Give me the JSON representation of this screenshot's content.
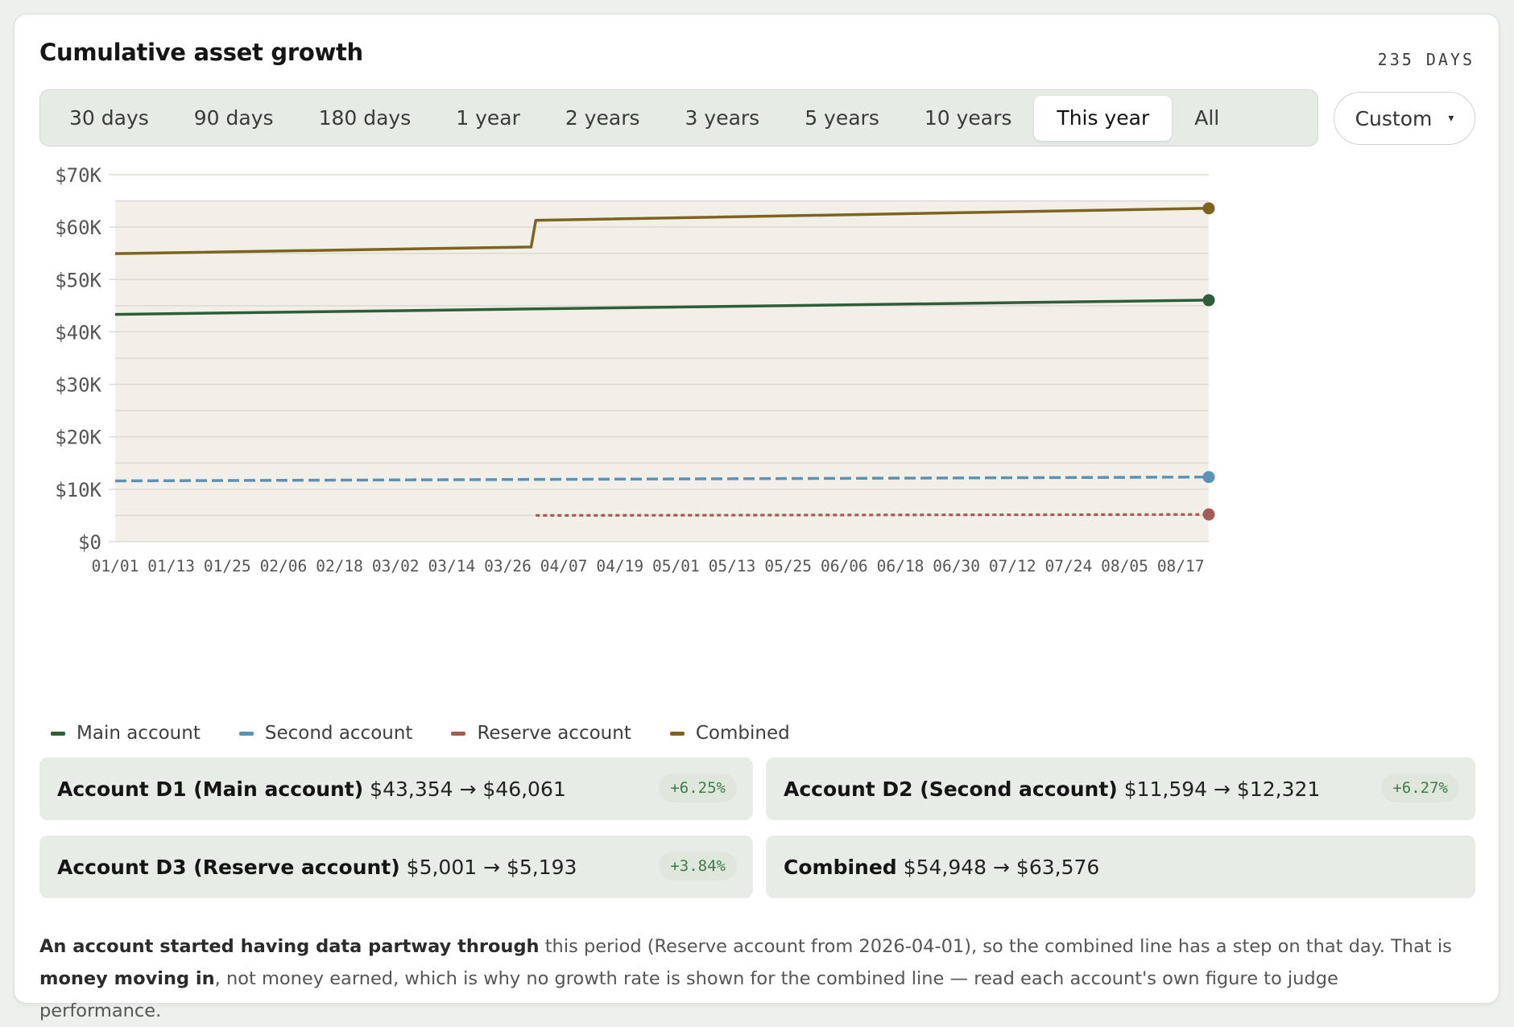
{
  "header": {
    "title": "Cumulative asset growth",
    "period_days": "235 DAYS"
  },
  "range_tabs": [
    {
      "label": "30 days",
      "active": false
    },
    {
      "label": "90 days",
      "active": false
    },
    {
      "label": "180 days",
      "active": false
    },
    {
      "label": "1 year",
      "active": false
    },
    {
      "label": "2 years",
      "active": false
    },
    {
      "label": "3 years",
      "active": false
    },
    {
      "label": "5 years",
      "active": false
    },
    {
      "label": "10 years",
      "active": false
    },
    {
      "label": "This year",
      "active": true
    },
    {
      "label": "All",
      "active": false
    }
  ],
  "custom_select": {
    "label": "Custom",
    "caret": "▾"
  },
  "colors": {
    "main": "#2f5d3a",
    "second": "#5b93b6",
    "reserve": "#a45a55",
    "combined": "#7e6320",
    "plot_bg": "#f2efe8",
    "gain": "#3f7a4c"
  },
  "chart_data": {
    "type": "line",
    "y_ticks": [
      "$0",
      "$10K",
      "$20K",
      "$30K",
      "$40K",
      "$50K",
      "$60K",
      "$70K"
    ],
    "ylim": [
      0,
      70000
    ],
    "x_ticks": [
      "01/01",
      "01/13",
      "01/25",
      "02/06",
      "02/18",
      "03/02",
      "03/14",
      "03/26",
      "04/07",
      "04/19",
      "05/01",
      "05/13",
      "05/25",
      "06/06",
      "06/18",
      "06/30",
      "07/12",
      "07/24",
      "08/05",
      "08/17"
    ],
    "x_range": [
      "2026-01-01",
      "2026-08-23"
    ],
    "grid": true,
    "legend": "bottom-left",
    "series": [
      {
        "name": "Main account",
        "key": "main",
        "style": "solid",
        "points": [
          [
            "2026-01-01",
            43354
          ],
          [
            "2026-08-23",
            46061
          ]
        ]
      },
      {
        "name": "Second account",
        "key": "second",
        "style": "dashed",
        "points": [
          [
            "2026-01-01",
            11594
          ],
          [
            "2026-08-23",
            12321
          ]
        ]
      },
      {
        "name": "Reserve account",
        "key": "reserve",
        "style": "dotted",
        "points": [
          [
            "2026-04-01",
            5001
          ],
          [
            "2026-08-23",
            5193
          ]
        ]
      },
      {
        "name": "Combined",
        "key": "combined",
        "style": "solid",
        "points": [
          [
            "2026-01-01",
            54948
          ],
          [
            "2026-03-31",
            56200
          ],
          [
            "2026-04-01",
            61300
          ],
          [
            "2026-08-23",
            63576
          ]
        ]
      }
    ]
  },
  "accounts": [
    {
      "name": "Account D1 (Main account)",
      "values": "$43,354 → $46,061",
      "pct": "+6.25%"
    },
    {
      "name": "Account D2 (Second account)",
      "values": "$11,594 → $12,321",
      "pct": "+6.27%"
    },
    {
      "name": "Account D3 (Reserve account)",
      "values": "$5,001 → $5,193",
      "pct": "+3.84%"
    },
    {
      "name": "Combined",
      "values": "$54,948 → $63,576",
      "pct": ""
    }
  ],
  "note": {
    "b1": "An account started having data partway through",
    "t1": " this period (Reserve account from 2026-04-01), so the combined line has a step on that day. That is ",
    "b2": "money moving in",
    "t2": ", not money earned, which is why no growth rate is shown for the combined line — read each account's own figure to judge performance."
  }
}
